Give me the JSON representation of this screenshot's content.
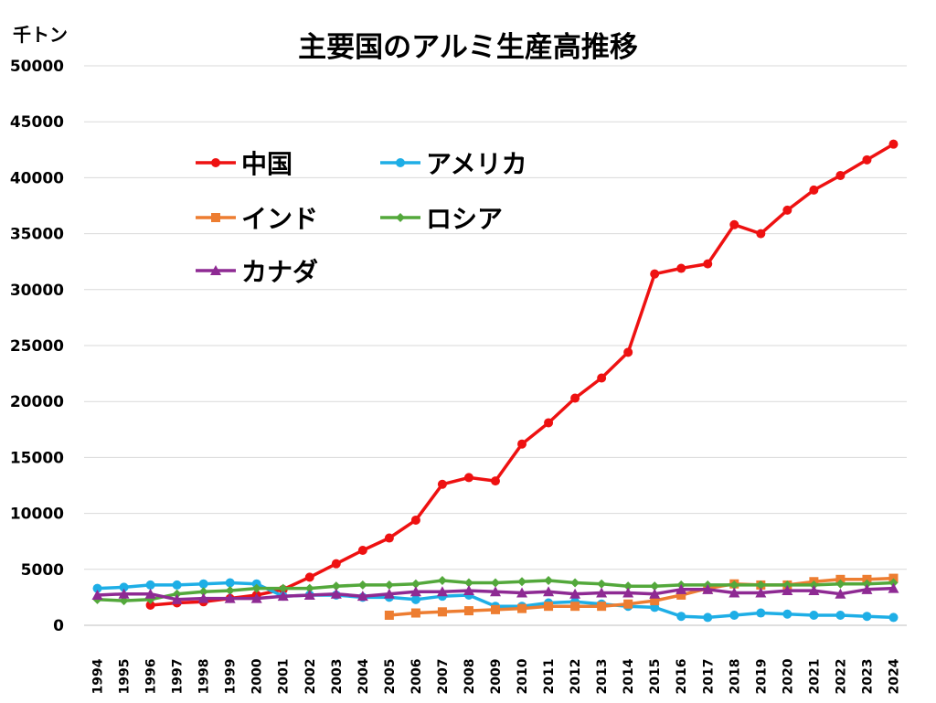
{
  "chart_data": {
    "type": "line",
    "title": "主要国のアルミ生産高推移",
    "unit_label": "千トン",
    "xlabel": "",
    "ylabel": "",
    "ylim": [
      0,
      50000
    ],
    "ytick_step": 5000,
    "grid": true,
    "legend_position": "top-left",
    "x": [
      "1994",
      "1995",
      "1996",
      "1997",
      "1998",
      "1999",
      "2000",
      "2001",
      "2002",
      "2003",
      "2004",
      "2005",
      "2006",
      "2007",
      "2008",
      "2009",
      "2010",
      "2011",
      "2012",
      "2013",
      "2014",
      "2015",
      "2016",
      "2017",
      "2018",
      "2019",
      "2020",
      "2021",
      "2022",
      "2023",
      "2024"
    ],
    "series": [
      {
        "name": "中国",
        "color": "#ee1111",
        "marker": "circle",
        "values": [
          null,
          null,
          1800,
          2000,
          2100,
          2400,
          2700,
          3200,
          4300,
          5500,
          6700,
          7800,
          9400,
          12600,
          13200,
          12900,
          16200,
          18100,
          20300,
          22100,
          24400,
          31400,
          31900,
          32300,
          35800,
          35000,
          37100,
          38900,
          40200,
          41600,
          43000
        ]
      },
      {
        "name": "アメリカ",
        "color": "#1eaee6",
        "marker": "circle",
        "values": [
          3300,
          3400,
          3600,
          3600,
          3700,
          3800,
          3700,
          2600,
          2700,
          2700,
          2500,
          2500,
          2300,
          2600,
          2700,
          1700,
          1700,
          2000,
          2100,
          1900,
          1700,
          1600,
          800,
          700,
          900,
          1100,
          1000,
          900,
          900,
          800,
          700
        ]
      },
      {
        "name": "インド",
        "color": "#ed7d31",
        "marker": "square",
        "values": [
          null,
          null,
          null,
          null,
          null,
          null,
          null,
          null,
          null,
          null,
          null,
          900,
          1100,
          1200,
          1300,
          1400,
          1500,
          1700,
          1700,
          1700,
          1900,
          2200,
          2700,
          3300,
          3700,
          3600,
          3600,
          3900,
          4100,
          4100,
          4200
        ]
      },
      {
        "name": "ロシア",
        "color": "#53a83b",
        "marker": "diamond",
        "values": [
          2300,
          2200,
          2300,
          2800,
          3000,
          3100,
          3300,
          3300,
          3300,
          3500,
          3600,
          3600,
          3700,
          4000,
          3800,
          3800,
          3900,
          4000,
          3800,
          3700,
          3500,
          3500,
          3600,
          3600,
          3600,
          3600,
          3600,
          3600,
          3700,
          3700,
          3800
        ]
      },
      {
        "name": "カナダ",
        "color": "#8e2a93",
        "marker": "triangle",
        "values": [
          2700,
          2800,
          2800,
          2300,
          2400,
          2400,
          2400,
          2600,
          2700,
          2800,
          2600,
          2800,
          3000,
          3000,
          3100,
          3000,
          2900,
          3000,
          2800,
          2900,
          2900,
          2800,
          3200,
          3200,
          2900,
          2900,
          3100,
          3100,
          2800,
          3200,
          3300
        ]
      }
    ]
  }
}
